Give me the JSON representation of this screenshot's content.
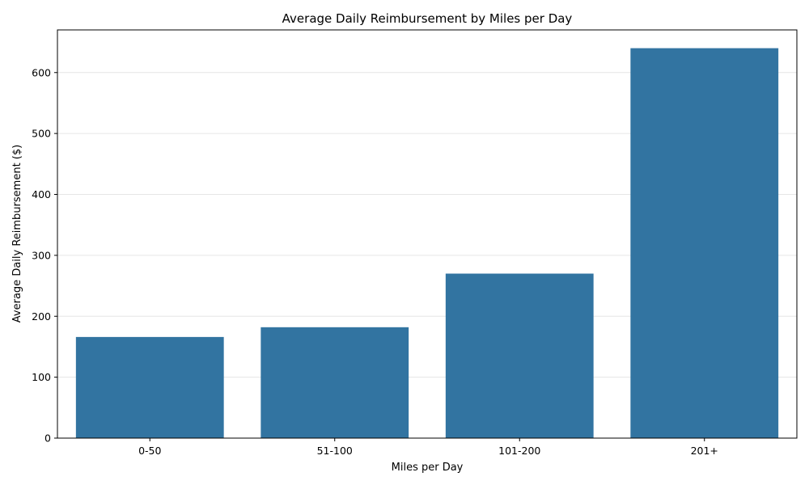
{
  "chart_data": {
    "type": "bar",
    "title": "Average Daily Reimbursement by Miles per Day",
    "xlabel": "Miles per Day",
    "ylabel": "Average Daily Reimbursement ($)",
    "categories": [
      "0-50",
      "51-100",
      "101-200",
      "201+"
    ],
    "values": [
      166,
      182,
      270,
      640
    ],
    "ylim": [
      0,
      670
    ],
    "yticks": [
      0,
      100,
      200,
      300,
      400,
      500,
      600
    ],
    "grid": "horizontal",
    "bar_color": "#3274a1"
  }
}
